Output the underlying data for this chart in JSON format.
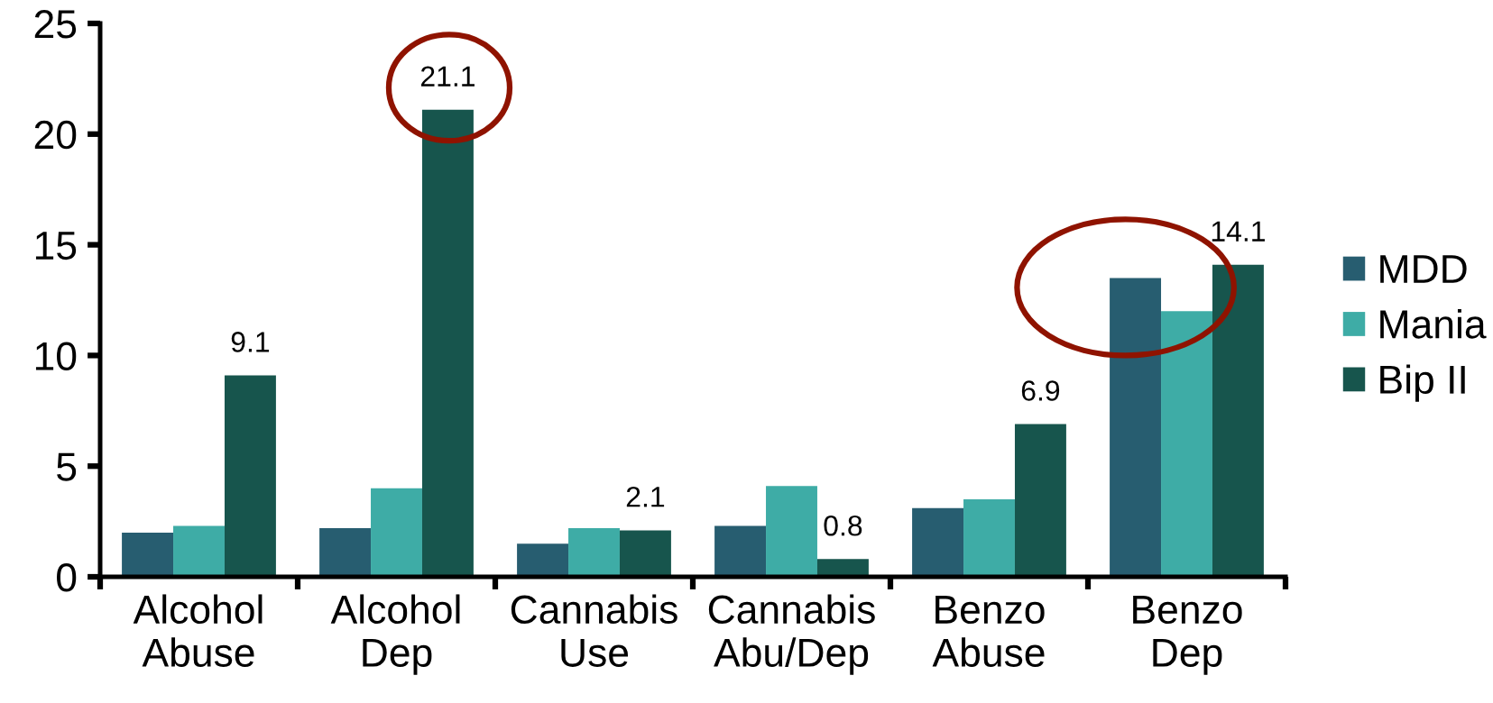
{
  "chart_data": {
    "type": "bar",
    "categories": [
      "Alcohol\nAbuse",
      "Alcohol\nDep",
      "Cannabis\nUse",
      "Cannabis\nAbu/Dep",
      "Benzo\nAbuse",
      "Benzo\nDep"
    ],
    "series": [
      {
        "name": "MDD",
        "color": "#275d70",
        "values": [
          2.0,
          2.2,
          1.5,
          2.3,
          3.1,
          13.5
        ]
      },
      {
        "name": "Mania",
        "color": "#3eaca6",
        "values": [
          2.3,
          4.0,
          2.2,
          4.1,
          3.5,
          12.0
        ]
      },
      {
        "name": "Bip II",
        "color": "#17554d",
        "values": [
          9.1,
          21.1,
          2.1,
          0.8,
          6.9,
          14.1
        ],
        "value_labels": [
          "9.1",
          "21.1",
          "2.1",
          "0.8",
          "6.9",
          "14.1"
        ]
      }
    ],
    "ylim": [
      0,
      25
    ],
    "yticks": [
      0,
      5,
      10,
      15,
      20,
      25
    ],
    "legend": "right"
  }
}
